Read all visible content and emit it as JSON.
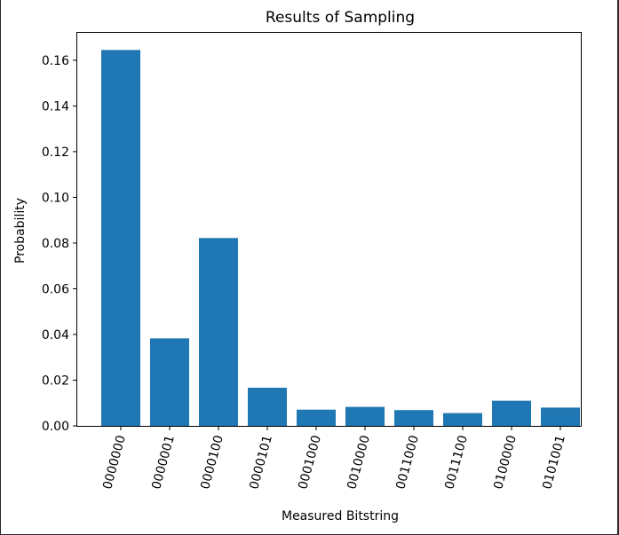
{
  "chart_data": {
    "type": "bar",
    "title": "Results of Sampling",
    "xlabel": "Measured Bitstring",
    "ylabel": "Probability",
    "categories": [
      "0000000",
      "0000001",
      "0000100",
      "0000101",
      "0001000",
      "0010000",
      "0011000",
      "0011100",
      "0100000",
      "0101001"
    ],
    "values": [
      0.1645,
      0.0383,
      0.0822,
      0.0167,
      0.0071,
      0.0083,
      0.0069,
      0.0056,
      0.011,
      0.008
    ],
    "ylim": [
      0,
      0.172
    ],
    "yticks": [
      "0.00",
      "0.02",
      "0.04",
      "0.06",
      "0.08",
      "0.10",
      "0.12",
      "0.14",
      "0.16"
    ],
    "grid": false,
    "legend": "none",
    "bar_color": "#1f77b4"
  }
}
